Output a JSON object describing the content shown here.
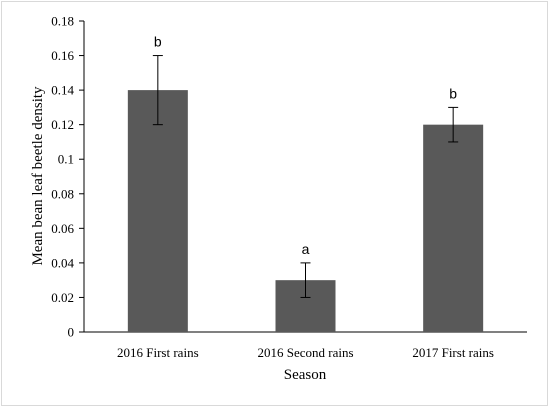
{
  "chart_data": {
    "type": "bar",
    "title": "",
    "xlabel": "Season",
    "ylabel": "Mean bean leaf beetle density",
    "categories": [
      "2016 First rains",
      "2016 Second rains",
      "2017 First rains"
    ],
    "values": [
      0.14,
      0.03,
      0.12
    ],
    "error_low": [
      0.12,
      0.02,
      0.11
    ],
    "error_high": [
      0.16,
      0.04,
      0.13
    ],
    "significance_letters": [
      "b",
      "a",
      "b"
    ],
    "ylim": [
      0,
      0.18
    ],
    "y_ticks": [
      "0",
      "0.02",
      "0.04",
      "0.06",
      "0.08",
      "0.1",
      "0.12",
      "0.14",
      "0.16",
      "0.18"
    ],
    "grid": false,
    "legend": "none",
    "bar_color": "#595959"
  }
}
